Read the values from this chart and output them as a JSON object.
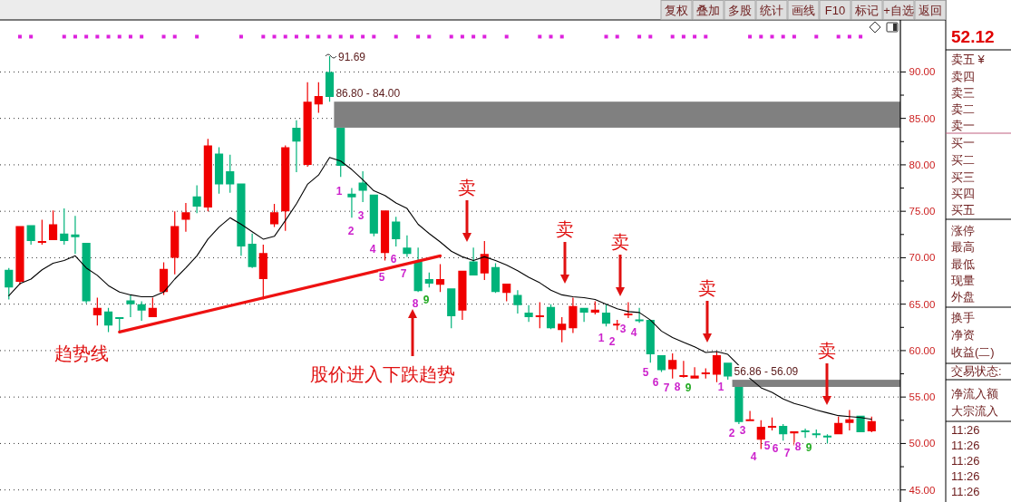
{
  "chart_data": {
    "type": "candlestick",
    "categories": [
      null,
      null,
      null,
      null,
      null,
      null,
      null,
      null,
      null,
      null,
      null,
      null,
      null,
      null,
      null,
      null,
      null,
      null,
      null,
      null,
      null,
      null,
      null,
      null,
      null,
      null,
      null,
      null,
      null,
      null,
      null,
      null,
      null,
      null,
      null,
      null,
      null,
      null,
      null,
      null,
      null,
      null,
      null,
      null,
      null,
      null,
      null,
      null,
      null,
      null,
      null,
      null,
      null,
      null,
      null,
      null,
      null,
      null,
      null,
      null,
      null,
      null,
      null,
      null,
      null,
      null,
      null,
      null,
      null,
      null,
      null,
      null,
      null,
      null,
      null,
      null,
      null,
      null,
      null
    ],
    "ohlc": [
      [
        68.7,
        68.9,
        65.5,
        66.8
      ],
      [
        67.4,
        73.4,
        67.1,
        73.4
      ],
      [
        73.5,
        73.5,
        71.4,
        71.8
      ],
      [
        71.6,
        74.1,
        71.4,
        71.8
      ],
      [
        71.9,
        75.1,
        71.9,
        73.6
      ],
      [
        72.6,
        75.3,
        71.4,
        71.8
      ],
      [
        72.5,
        74.5,
        70.4,
        72.2
      ],
      [
        71.6,
        71.6,
        65.1,
        65.3
      ],
      [
        63.8,
        65.7,
        62.7,
        64.6
      ],
      [
        64.2,
        64.6,
        62.0,
        62.7
      ],
      [
        63.6,
        63.6,
        62.1,
        63.4
      ],
      [
        65.4,
        66.0,
        63.6,
        65.0
      ],
      [
        65.0,
        65.3,
        63.2,
        64.3
      ],
      [
        63.6,
        65.7,
        63.6,
        64.6
      ],
      [
        66.3,
        69.5,
        66.0,
        68.8
      ],
      [
        70.0,
        75.0,
        68.2,
        73.4
      ],
      [
        74.1,
        75.9,
        72.8,
        74.9
      ],
      [
        76.6,
        77.8,
        74.8,
        75.5
      ],
      [
        75.4,
        82.8,
        75.0,
        82.1
      ],
      [
        81.2,
        81.9,
        76.9,
        77.9
      ],
      [
        79.3,
        81.1,
        77.0,
        77.9
      ],
      [
        78.0,
        78.0,
        70.2,
        71.2
      ],
      [
        71.5,
        72.6,
        68.9,
        69.0
      ],
      [
        67.7,
        71.4,
        65.5,
        70.5
      ],
      [
        73.6,
        75.8,
        73.3,
        74.9
      ],
      [
        75.0,
        82.1,
        72.9,
        81.9
      ],
      [
        84.0,
        84.8,
        79.2,
        82.5
      ],
      [
        80.0,
        88.9,
        79.8,
        86.8
      ],
      [
        86.5,
        88.9,
        85.6,
        87.4
      ],
      [
        90.0,
        91.69,
        86.8,
        87.3
      ],
      [
        84.0,
        84.0,
        78.7,
        79.9
      ],
      [
        76.9,
        77.5,
        74.3,
        76.5
      ],
      [
        78.1,
        79.3,
        76.0,
        77.2
      ],
      [
        76.8,
        76.8,
        72.3,
        72.6
      ],
      [
        70.5,
        75.1,
        69.7,
        75.1
      ],
      [
        73.9,
        74.4,
        71.2,
        72.0
      ],
      [
        71.1,
        72.4,
        70.1,
        70.4
      ],
      [
        69.6,
        71.1,
        66.3,
        66.4
      ],
      [
        67.7,
        68.4,
        66.8,
        67.2
      ],
      [
        67.1,
        69.3,
        66.3,
        67.7
      ],
      [
        66.7,
        66.7,
        62.4,
        63.7
      ],
      [
        64.3,
        68.6,
        63.3,
        68.6
      ],
      [
        69.6,
        71.1,
        68.1,
        68.1
      ],
      [
        68.3,
        71.8,
        67.6,
        70.4
      ],
      [
        69.0,
        69.4,
        66.2,
        66.3
      ],
      [
        66.2,
        67.2,
        65.3,
        67.2
      ],
      [
        66.0,
        66.5,
        64.0,
        64.9
      ],
      [
        64.1,
        64.9,
        63.1,
        63.6
      ],
      [
        63.6,
        65.2,
        62.4,
        63.8
      ],
      [
        64.7,
        65.0,
        62.3,
        62.4
      ],
      [
        62.2,
        63.6,
        60.9,
        62.9
      ],
      [
        62.4,
        65.7,
        61.9,
        64.8
      ],
      [
        64.6,
        64.6,
        63.1,
        64.1
      ],
      [
        64.1,
        65.3,
        63.9,
        64.4
      ],
      [
        64.1,
        65.0,
        62.6,
        62.9
      ],
      [
        62.7,
        63.3,
        62.2,
        62.9
      ],
      [
        63.8,
        65.2,
        63.5,
        64.0
      ],
      [
        63.3,
        64.6,
        63.0,
        63.2
      ],
      [
        63.3,
        63.3,
        58.7,
        59.6
      ],
      [
        59.5,
        59.5,
        57.7,
        57.9
      ],
      [
        58.0,
        59.7,
        57.0,
        59.0
      ],
      [
        57.2,
        58.9,
        57.1,
        57.3
      ],
      [
        57.0,
        58.2,
        57.0,
        57.3
      ],
      [
        57.5,
        58.1,
        57.0,
        57.6
      ],
      [
        57.4,
        59.9,
        56.6,
        59.5
      ],
      [
        58.7,
        58.7,
        56.86,
        57.2
      ],
      [
        56.09,
        56.09,
        52.1,
        52.3
      ],
      [
        52.4,
        53.5,
        52.4,
        52.6
      ],
      [
        50.4,
        52.5,
        49.4,
        51.8
      ],
      [
        51.7,
        52.8,
        51.4,
        51.9
      ],
      [
        51.9,
        52.1,
        50.3,
        51.0
      ],
      [
        51.1,
        51.3,
        49.8,
        51.3
      ],
      [
        51.4,
        51.6,
        50.6,
        51.2
      ],
      [
        51.1,
        51.5,
        50.6,
        50.9
      ],
      [
        50.8,
        51.0,
        50.0,
        50.7
      ],
      [
        51.0,
        52.9,
        51.0,
        52.2
      ],
      [
        52.2,
        53.6,
        51.4,
        52.6
      ],
      [
        53.0,
        53.0,
        51.2,
        51.2
      ],
      [
        51.3,
        52.9,
        51.2,
        52.4
      ]
    ],
    "series": [
      {
        "type": "line",
        "color": "#000000",
        "values": [
          65.9,
          67.2,
          67.7,
          68.7,
          69.4,
          69.7,
          70.2,
          68.9,
          68.1,
          67.0,
          66.3,
          66.0,
          65.8,
          65.8,
          66.3,
          67.7,
          68.9,
          70.2,
          72.0,
          73.3,
          74.3,
          73.6,
          72.8,
          72.0,
          72.3,
          74.0,
          75.8,
          77.9,
          78.9,
          80.8,
          80.4,
          79.5,
          78.4,
          77.2,
          76.7,
          75.9,
          75.3,
          73.6,
          72.6,
          71.7,
          70.7,
          70.1,
          69.7,
          70.1,
          69.7,
          69.2,
          68.6,
          67.9,
          67.3,
          66.5,
          66.0,
          65.8,
          65.7,
          65.5,
          65.0,
          64.5,
          64.2,
          64.1,
          63.3,
          62.1,
          61.4,
          60.9,
          60.4,
          59.8,
          59.9,
          59.6,
          58.4,
          57.0,
          56.0,
          55.5,
          54.8,
          54.3,
          54.0,
          53.6,
          53.3,
          53.0,
          52.9,
          52.8,
          52.6
        ]
      },
      {
        "type": "line",
        "color": "#ee1111",
        "values": [
          null,
          null,
          null,
          null,
          null,
          null,
          null,
          null,
          null,
          null,
          62.0,
          null,
          null,
          null,
          null,
          null,
          null,
          null,
          null,
          null,
          null,
          null,
          null,
          null,
          null,
          null,
          null,
          null,
          null,
          null,
          null,
          null,
          null,
          null,
          null,
          null,
          null,
          null,
          null,
          70.2,
          null,
          null,
          null,
          null,
          null,
          null,
          null,
          null,
          null,
          null,
          null,
          null,
          null,
          null,
          null,
          null,
          null,
          null,
          null,
          null,
          null,
          null,
          null,
          null,
          null,
          null,
          null,
          null,
          null,
          null,
          null,
          null,
          null,
          null,
          null,
          null,
          null,
          null,
          null
        ]
      },
      {
        "type": "scatter",
        "color": "#dd22dd",
        "marker": "square",
        "values": [
          null,
          93.8,
          93.8,
          null,
          null,
          93.8,
          93.8,
          93.8,
          93.8,
          93.8,
          93.8,
          93.8,
          93.8,
          null,
          93.8,
          93.8,
          null,
          93.8,
          null,
          null,
          null,
          93.8,
          null,
          93.8,
          93.8,
          93.8,
          93.8,
          93.8,
          93.8,
          93.8,
          93.8,
          93.8,
          93.8,
          93.8,
          null,
          93.8,
          null,
          93.8,
          93.8,
          null,
          93.8,
          93.8,
          93.8,
          93.8,
          null,
          93.8,
          null,
          null,
          93.8,
          93.8,
          93.8,
          null,
          null,
          null,
          93.8,
          93.8,
          null,
          93.8,
          93.8,
          null,
          93.8,
          93.8,
          93.8,
          93.8,
          null,
          null,
          null,
          93.8,
          93.8,
          93.8,
          93.8,
          93.8,
          null,
          93.8,
          null,
          93.8,
          93.8,
          93.8,
          null
        ]
      }
    ],
    "ylim": [
      43.7,
      95.6
    ],
    "yticks": [
      {
        "value": 45,
        "label": "45.00"
      },
      {
        "value": 50,
        "label": "50.00"
      },
      {
        "value": 55,
        "label": "55.00"
      },
      {
        "value": 60,
        "label": "60.00"
      },
      {
        "value": 65,
        "label": "65.00"
      },
      {
        "value": 70,
        "label": "70.00"
      },
      {
        "value": 75,
        "label": "75.00"
      },
      {
        "value": 80,
        "label": "80.00"
      },
      {
        "value": 85,
        "label": "85.00"
      },
      {
        "value": 90,
        "label": "90.00"
      }
    ],
    "grid": "y",
    "tick_labels": "y",
    "bands": [
      {
        "axis": "y",
        "from": 84,
        "to": 86.8,
        "label": "86.80 - 84.00",
        "color": "#808080"
      },
      {
        "axis": "y",
        "from": 56.09,
        "to": 56.86,
        "label": "56.86 - 56.09",
        "color": "#808080"
      }
    ],
    "annotations": [
      "91.69",
      "趋势线",
      "股价进入下跌趋势",
      "卖",
      "卖",
      "卖",
      "卖",
      "卖",
      "1",
      "2",
      "3",
      "4",
      "5",
      "6",
      "7",
      "8",
      "9",
      "1",
      "2",
      "3",
      "4",
      "5",
      "6",
      "7",
      "8",
      "9",
      "1",
      "2",
      "3",
      "4",
      "5",
      "6",
      "7",
      "8",
      "9",
      "复权",
      "叠加",
      "多股",
      "统计",
      "画线",
      "F10",
      "标记",
      "+自选",
      "返回",
      "52.12",
      "卖五 ¥",
      "卖四",
      "卖三",
      "卖二",
      "卖一",
      "买一",
      "买二",
      "买三",
      "买四",
      "买五",
      "涨停",
      "最高",
      "最低",
      "现量",
      "外盘",
      "换手",
      "净资",
      "收益(二)",
      "交易状态:",
      "净流入额",
      "大宗流入",
      "11:26",
      "11:26",
      "11:26",
      "11:26",
      "11:26"
    ]
  }
}
